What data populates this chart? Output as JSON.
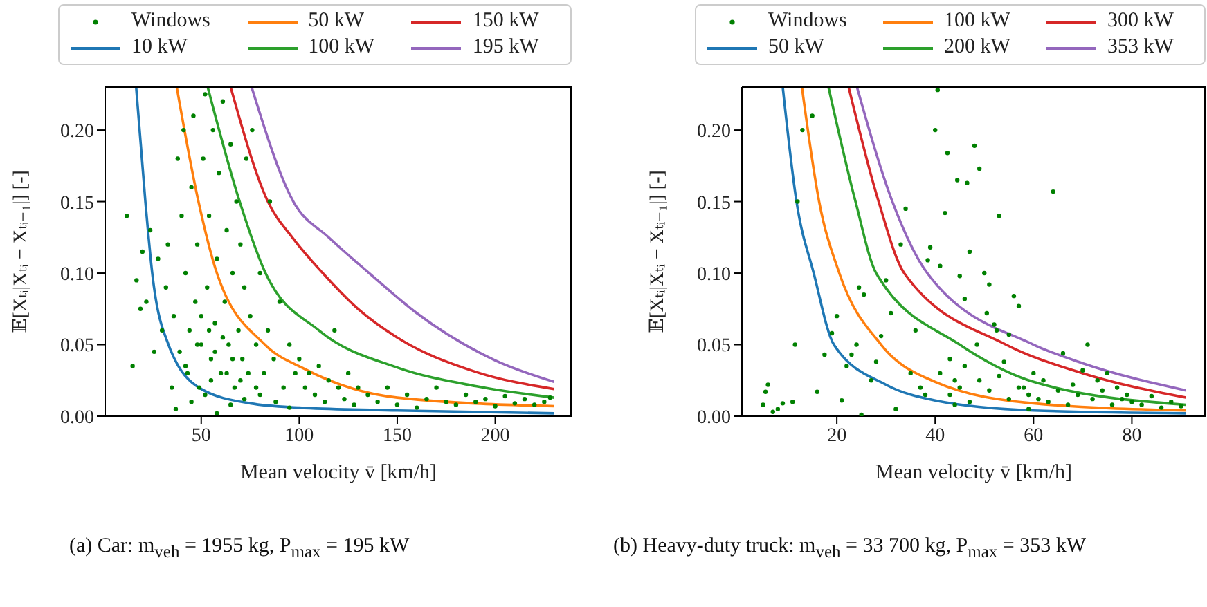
{
  "chart_data": [
    {
      "type": "scatter",
      "xlabel": "Mean velocity v̄ [km/h]",
      "ylabel": "𝔼[Xₜᵢ|Xₜᵢ − Xₜᵢ₋₁|] [-]",
      "xlim": [
        1,
        239
      ],
      "ylim": [
        0,
        0.23
      ],
      "xticks": [
        50,
        100,
        150,
        200
      ],
      "yticks": [
        {
          "value": 0,
          "label": "0.00"
        },
        {
          "value": 0.05,
          "label": "0.05"
        },
        {
          "value": 0.1,
          "label": "0.10"
        },
        {
          "value": 0.15,
          "label": "0.15"
        },
        {
          "value": 0.2,
          "label": "0.20"
        }
      ],
      "legend": "top",
      "grid": false,
      "line_style": "solid",
      "annotations": [
        "(a) Car: m$_{veh}$ = 1955 kg, P$_{max}$ = 195 kW"
      ],
      "series": [
        {
          "name": "Windows",
          "marker": "circle",
          "color": "#008000",
          "x": [
            12,
            15,
            17,
            19,
            20,
            22,
            24,
            26,
            28,
            30,
            32,
            33,
            35,
            36,
            38,
            39,
            40,
            41,
            42,
            43,
            44,
            45,
            46,
            47,
            48,
            49,
            50,
            51,
            52,
            53,
            54,
            55,
            56,
            57,
            58,
            59,
            60,
            61,
            62,
            63,
            64,
            65,
            66,
            67,
            68,
            69,
            70,
            71,
            72,
            73,
            74,
            75,
            76,
            78,
            80,
            82,
            84,
            85,
            87,
            90,
            92,
            95,
            98,
            100,
            103,
            105,
            108,
            110,
            113,
            115,
            118,
            120,
            123,
            125,
            128,
            130,
            135,
            140,
            145,
            150,
            155,
            160,
            165,
            170,
            175,
            180,
            185,
            190,
            195,
            200,
            205,
            210,
            215,
            220,
            225,
            228,
            37,
            45,
            52,
            58,
            65,
            72,
            80,
            88,
            95,
            42,
            55,
            63,
            70,
            78,
            48,
            57,
            66,
            54,
            61,
            50
          ],
          "values": [
            0.14,
            0.035,
            0.095,
            0.075,
            0.115,
            0.08,
            0.13,
            0.045,
            0.11,
            0.06,
            0.09,
            0.12,
            0.02,
            0.07,
            0.18,
            0.045,
            0.14,
            0.2,
            0.1,
            0.03,
            0.06,
            0.16,
            0.21,
            0.08,
            0.12,
            0.02,
            0.05,
            0.18,
            0.225,
            0.09,
            0.14,
            0.04,
            0.2,
            0.065,
            0.11,
            0.17,
            0.03,
            0.22,
            0.08,
            0.13,
            0.05,
            0.19,
            0.1,
            0.02,
            0.15,
            0.06,
            0.12,
            0.04,
            0.09,
            0.18,
            0.03,
            0.07,
            0.2,
            0.05,
            0.1,
            0.03,
            0.06,
            0.15,
            0.04,
            0.08,
            0.02,
            0.05,
            0.03,
            0.04,
            0.02,
            0.03,
            0.015,
            0.035,
            0.01,
            0.025,
            0.06,
            0.02,
            0.012,
            0.03,
            0.008,
            0.02,
            0.015,
            0.01,
            0.02,
            0.008,
            0.015,
            0.006,
            0.012,
            0.02,
            0.01,
            0.008,
            0.015,
            0.01,
            0.012,
            0.007,
            0.014,
            0.009,
            0.012,
            0.008,
            0.01,
            0.013,
            0.005,
            0.01,
            0.015,
            0.002,
            0.008,
            0.012,
            0.015,
            0.01,
            0.006,
            0.035,
            0.025,
            0.03,
            0.025,
            0.02,
            0.05,
            0.045,
            0.04,
            0.06,
            0.055,
            0.07
          ]
        },
        {
          "name": "10 kW",
          "type": "line",
          "color": "#1f77b4",
          "x": [
            16.8,
            21.5,
            25,
            33.3,
            50,
            75,
            100,
            150,
            230
          ],
          "values": [
            0.23,
            0.15,
            0.1,
            0.05,
            0.019,
            0.009,
            0.006,
            0.004,
            0.002
          ]
        },
        {
          "name": "50 kW",
          "type": "line",
          "color": "#ff7f0e",
          "x": [
            37.5,
            48.6,
            58,
            82.5,
            102.7,
            150,
            230
          ],
          "values": [
            0.23,
            0.15,
            0.1,
            0.05,
            0.033,
            0.013,
            0.007
          ]
        },
        {
          "name": "100 kW",
          "type": "line",
          "color": "#2ca02c",
          "x": [
            53.3,
            69.6,
            82.8,
            110,
            150,
            190,
            230
          ],
          "values": [
            0.23,
            0.15,
            0.1,
            0.06,
            0.034,
            0.021,
            0.013
          ]
        },
        {
          "name": "150 kW",
          "type": "line",
          "color": "#d62728",
          "x": [
            65,
            84,
            97,
            112,
            130,
            150,
            190,
            230
          ],
          "values": [
            0.23,
            0.15,
            0.124,
            0.1,
            0.075,
            0.055,
            0.031,
            0.019
          ]
        },
        {
          "name": "195 kW",
          "type": "line",
          "color": "#9467bd",
          "x": [
            75.7,
            97,
            115,
            135.7,
            160,
            200,
            230
          ],
          "values": [
            0.23,
            0.15,
            0.125,
            0.1,
            0.072,
            0.039,
            0.024
          ]
        }
      ]
    },
    {
      "type": "scatter",
      "xlabel": "Mean velocity v̄ [km/h]",
      "ylabel": "𝔼[Xₜᵢ|Xₜᵢ − Xₜᵢ₋₁|] [-]",
      "xlim": [
        0.7,
        95
      ],
      "ylim": [
        0,
        0.23
      ],
      "xticks": [
        20,
        40,
        60,
        80
      ],
      "yticks": [
        {
          "value": 0,
          "label": "0.00"
        },
        {
          "value": 0.05,
          "label": "0.05"
        },
        {
          "value": 0.1,
          "label": "0.10"
        },
        {
          "value": 0.15,
          "label": "0.15"
        },
        {
          "value": 0.2,
          "label": "0.20"
        }
      ],
      "legend": "top",
      "grid": false,
      "line_style": "solid",
      "annotations": [
        "(b) Heavy-duty truck: m$_{veh}$ = 33 700 kg, P$_{max}$ = 353 kW"
      ],
      "series": [
        {
          "name": "Windows",
          "marker": "circle",
          "color": "#008000",
          "x": [
            5,
            5.5,
            6,
            7,
            8,
            9,
            11,
            11.5,
            12,
            13,
            15,
            16,
            17.5,
            19,
            20,
            21,
            22,
            23,
            24,
            24.5,
            25,
            25.5,
            27,
            28,
            29,
            30,
            31,
            32,
            33,
            34,
            35,
            36,
            37,
            38,
            38.5,
            39,
            40,
            40.5,
            41,
            42,
            42.5,
            43,
            44,
            44.5,
            45,
            46,
            46.5,
            47,
            48,
            48.5,
            49,
            50,
            50.5,
            51,
            52,
            52.5,
            53,
            54,
            55,
            56,
            57,
            58,
            59,
            60,
            61,
            62,
            63,
            64,
            65,
            66,
            67,
            68,
            69,
            70,
            71,
            72,
            73,
            74,
            75,
            76,
            77,
            78,
            79,
            80,
            82,
            84,
            86,
            88,
            90,
            41,
            43,
            45,
            47,
            49,
            51,
            53,
            55,
            57,
            59,
            44,
            46
          ],
          "values": [
            0.008,
            0.017,
            0.022,
            0.003,
            0.005,
            0.009,
            0.01,
            0.05,
            0.15,
            0.2,
            0.21,
            0.017,
            0.043,
            0.058,
            0.07,
            0.011,
            0.035,
            0.043,
            0.05,
            0.09,
            0.001,
            0.085,
            0.025,
            0.038,
            0.056,
            0.095,
            0.072,
            0.005,
            0.12,
            0.145,
            0.03,
            0.06,
            0.02,
            0.015,
            0.109,
            0.118,
            0.2,
            0.228,
            0.105,
            0.142,
            0.184,
            0.04,
            0.025,
            0.165,
            0.098,
            0.082,
            0.163,
            0.115,
            0.189,
            0.05,
            0.173,
            0.1,
            0.072,
            0.092,
            0.064,
            0.06,
            0.14,
            0.038,
            0.057,
            0.084,
            0.077,
            0.02,
            0.015,
            0.03,
            0.012,
            0.025,
            0.01,
            0.157,
            0.018,
            0.044,
            0.008,
            0.022,
            0.015,
            0.032,
            0.05,
            0.012,
            0.025,
            0.018,
            0.03,
            0.008,
            0.02,
            0.012,
            0.015,
            0.01,
            0.008,
            0.014,
            0.006,
            0.01,
            0.007,
            0.03,
            0.015,
            0.02,
            0.01,
            0.025,
            0.018,
            0.028,
            0.012,
            0.02,
            0.005,
            0.008,
            0.035
          ]
        },
        {
          "name": "50 kW",
          "type": "line",
          "color": "#1f77b4",
          "x": [
            9,
            11.8,
            15.3,
            19.4,
            30,
            40,
            60,
            91
          ],
          "values": [
            0.23,
            0.15,
            0.1,
            0.05,
            0.022,
            0.011,
            0.004,
            0.002
          ]
        },
        {
          "name": "100 kW",
          "type": "line",
          "color": "#ff7f0e",
          "x": [
            12.9,
            16.4,
            20.5,
            29,
            40,
            60,
            91
          ],
          "values": [
            0.23,
            0.15,
            0.1,
            0.05,
            0.024,
            0.009,
            0.004
          ]
        },
        {
          "name": "200 kW",
          "type": "line",
          "color": "#2ca02c",
          "x": [
            18.3,
            23.8,
            28,
            45,
            60,
            91
          ],
          "values": [
            0.23,
            0.15,
            0.1,
            0.05,
            0.024,
            0.008
          ]
        },
        {
          "name": "300 kW",
          "type": "line",
          "color": "#d62728",
          "x": [
            22.4,
            28.5,
            33.7,
            54.4,
            70,
            91
          ],
          "values": [
            0.23,
            0.15,
            0.1,
            0.05,
            0.03,
            0.013
          ]
        },
        {
          "name": "353 kW",
          "type": "line",
          "color": "#9467bd",
          "x": [
            24.1,
            31.3,
            38.4,
            60,
            70,
            91
          ],
          "values": [
            0.23,
            0.15,
            0.1,
            0.05,
            0.037,
            0.018
          ]
        }
      ]
    }
  ]
}
